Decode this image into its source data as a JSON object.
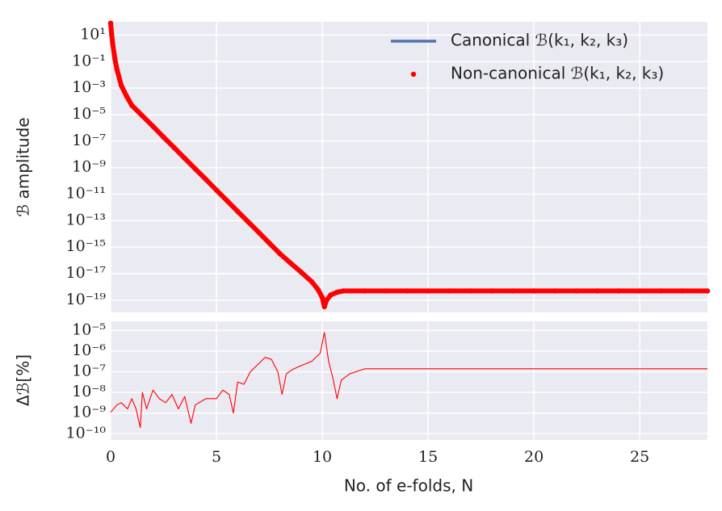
{
  "chart_data": [
    {
      "type": "line",
      "ylabel": "ℬ amplitude",
      "yscale": "log",
      "grid": true,
      "legend": "upper right",
      "xlim": [
        0,
        28.2
      ],
      "ylim": [
        1.2e-20,
        100
      ],
      "yticks": [
        {
          "value": 10,
          "label": "10¹"
        },
        {
          "value": 0.1,
          "label": "10⁻¹"
        },
        {
          "value": 0.001,
          "label": "10⁻³"
        },
        {
          "value": 1e-05,
          "label": "10⁻⁵"
        },
        {
          "value": 1e-07,
          "label": "10⁻⁷"
        },
        {
          "value": 1e-09,
          "label": "10⁻⁹"
        },
        {
          "value": 1e-11,
          "label": "10⁻¹¹"
        },
        {
          "value": 1e-13,
          "label": "10⁻¹³"
        },
        {
          "value": 1e-15,
          "label": "10⁻¹⁵"
        },
        {
          "value": 1e-17,
          "label": "10⁻¹⁷"
        },
        {
          "value": 1e-19,
          "label": "10⁻¹⁹"
        }
      ],
      "x": [
        0,
        0.05,
        0.1,
        0.2,
        0.3,
        0.5,
        0.75,
        1,
        1.5,
        2,
        2.5,
        3,
        3.5,
        4,
        4.5,
        5,
        5.5,
        6,
        6.5,
        7,
        7.5,
        8,
        8.5,
        9,
        9.5,
        9.8,
        10,
        10.1,
        10.2,
        10.4,
        10.7,
        11,
        12,
        13,
        14,
        15,
        16,
        17,
        18,
        19,
        20,
        21,
        22,
        23,
        24,
        25,
        26,
        27,
        28.2
      ],
      "series": [
        {
          "name": "Canonical ℬ(k₁, k₂, k₃)",
          "color": "#4c72b0",
          "style": "line",
          "values": [
            79.4,
            10,
            2,
            0.16,
            0.025,
            0.0016,
            0.00025,
            5e-05,
            8e-06,
            1.3e-06,
            2e-07,
            3.2e-08,
            5e-09,
            8e-10,
            1.3e-10,
            2e-11,
            3.2e-12,
            5e-13,
            8e-14,
            1.3e-14,
            2e-15,
            3.2e-16,
            6.3e-17,
            1.3e-17,
            2.5e-18,
            6.3e-19,
            1.6e-19,
            3.2e-20,
            1e-19,
            2.5e-19,
            4e-19,
            5e-19,
            5e-19,
            5e-19,
            5e-19,
            5e-19,
            5e-19,
            5e-19,
            5e-19,
            5e-19,
            5e-19,
            5e-19,
            5e-19,
            5e-19,
            5e-19,
            5e-19,
            5e-19,
            5e-19,
            5e-19
          ]
        },
        {
          "name": "Non-canonical ℬ(k₁, k₂, k₃)",
          "color": "#ff0000",
          "style": "dots",
          "values": [
            79.4,
            10,
            2,
            0.16,
            0.025,
            0.0016,
            0.00025,
            5e-05,
            8e-06,
            1.3e-06,
            2e-07,
            3.2e-08,
            5e-09,
            8e-10,
            1.3e-10,
            2e-11,
            3.2e-12,
            5e-13,
            8e-14,
            1.3e-14,
            2e-15,
            3.2e-16,
            6.3e-17,
            1.3e-17,
            2.5e-18,
            6.3e-19,
            1.6e-19,
            3.2e-20,
            1e-19,
            2.5e-19,
            4e-19,
            5e-19,
            5e-19,
            5e-19,
            5e-19,
            5e-19,
            5e-19,
            5e-19,
            5e-19,
            5e-19,
            5e-19,
            5e-19,
            5e-19,
            5e-19,
            5e-19,
            5e-19,
            5e-19,
            5e-19,
            5e-19
          ]
        }
      ]
    },
    {
      "type": "line",
      "ylabel": "Δℬ[%]",
      "xlabel": "No. of e-folds, N",
      "yscale": "log",
      "grid": true,
      "xlim": [
        0,
        28.2
      ],
      "ylim": [
        5e-11,
        2.8e-05
      ],
      "xticks": [
        0,
        5,
        10,
        15,
        20,
        25
      ],
      "yticks": [
        {
          "value": 1e-05,
          "label": "10⁻⁵"
        },
        {
          "value": 1e-06,
          "label": "10⁻⁶"
        },
        {
          "value": 1e-07,
          "label": "10⁻⁷"
        },
        {
          "value": 1e-08,
          "label": "10⁻⁸"
        },
        {
          "value": 1e-09,
          "label": "10⁻⁹"
        },
        {
          "value": 1e-10,
          "label": "10⁻¹⁰"
        }
      ],
      "x": [
        0,
        0.3,
        0.5,
        0.8,
        1,
        1.2,
        1.4,
        1.5,
        1.7,
        2,
        2.3,
        2.6,
        2.9,
        3.2,
        3.5,
        3.8,
        4,
        4.5,
        5,
        5.3,
        5.6,
        5.8,
        6,
        6.3,
        6.6,
        7,
        7.3,
        7.6,
        7.9,
        8.1,
        8.3,
        8.6,
        9,
        9.5,
        9.9,
        10.1,
        10.3,
        10.5,
        10.7,
        10.9,
        11.3,
        12,
        28.2
      ],
      "series": [
        {
          "color": "#ff0000",
          "style": "line",
          "values": [
            1.1e-09,
            2.5e-09,
            3.2e-09,
            1.6e-09,
            5e-09,
            1.6e-09,
            2e-10,
            1e-08,
            1.6e-09,
            1.3e-08,
            5e-09,
            3.2e-09,
            8e-09,
            1.6e-09,
            6.3e-09,
            3.2e-10,
            2.5e-09,
            5e-09,
            5e-09,
            1.3e-08,
            8e-09,
            1e-09,
            3.2e-08,
            2.5e-08,
            1e-07,
            2.5e-07,
            5e-07,
            4e-07,
            1e-07,
            8e-09,
            8e-08,
            1.3e-07,
            2e-07,
            3.2e-07,
            8e-07,
            8e-06,
            3.2e-07,
            5e-08,
            5e-09,
            4e-08,
            8e-08,
            1.4e-07,
            1.4e-07
          ]
        }
      ]
    }
  ]
}
